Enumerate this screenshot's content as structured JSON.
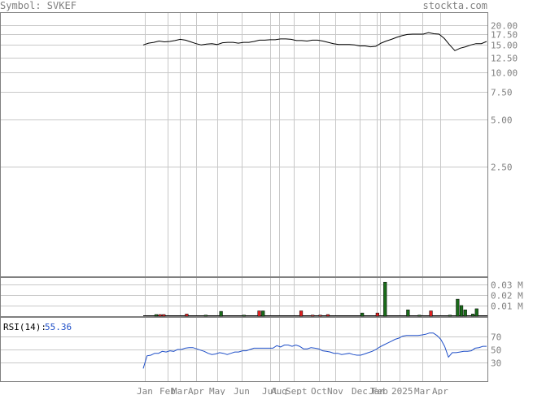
{
  "header": {
    "symbol_label": "Symbol: SVKEF",
    "site_label": "stockta.com"
  },
  "rsi": {
    "label": "RSI(14):",
    "value": "55.36",
    "ticks": [
      "70",
      "50",
      "30"
    ],
    "levels": [
      70,
      50,
      30
    ]
  },
  "colors": {
    "price_line": "#000000",
    "rsi_line": "#1f4fc8",
    "volume_up": "#1a6b1a",
    "volume_down": "#e02020",
    "grid": "#c8c8c8",
    "text": "#808080",
    "rsi_value": "#1f4fc8"
  },
  "chart_data": {
    "type": "line",
    "x_labels": [
      "Jan",
      "Feb",
      "Mar",
      "Apr",
      "May",
      "Jun",
      "Jul",
      "Aug",
      "Sept",
      "Oct",
      "Nov",
      "Dec",
      "Jan",
      "Feb",
      "2025",
      "Mar",
      "Apr"
    ],
    "price": {
      "ticks": [
        "20.00",
        "17.50",
        "15.00",
        "12.50",
        "10.00",
        "7.50",
        "5.00",
        "2.50"
      ],
      "tick_values": [
        20,
        17.5,
        15,
        12.5,
        10,
        7.5,
        5,
        2.5
      ],
      "scale": "log",
      "ylim": [
        0.5,
        24
      ],
      "close": [
        15.0,
        15.4,
        15.6,
        15.9,
        15.7,
        15.8,
        16.0,
        16.3,
        16.1,
        15.7,
        15.3,
        15.0,
        15.2,
        15.3,
        15.1,
        15.5,
        15.6,
        15.6,
        15.4,
        15.6,
        15.6,
        15.8,
        16.1,
        16.1,
        16.2,
        16.2,
        16.4,
        16.4,
        16.3,
        16.0,
        16.0,
        15.9,
        16.1,
        16.1,
        15.9,
        15.6,
        15.3,
        15.1,
        15.1,
        15.1,
        15.0,
        14.8,
        14.8,
        14.6,
        14.7,
        15.4,
        15.9,
        16.3,
        16.8,
        17.2,
        17.5,
        17.6,
        17.6,
        17.6,
        18.0,
        17.7,
        17.6,
        16.5,
        15.0,
        13.8,
        14.3,
        14.6,
        15.0,
        15.3,
        15.3,
        15.8
      ]
    },
    "volume": {
      "ticks": [
        "0.03 M",
        "0.02 M",
        "0.01 M"
      ],
      "tick_values": [
        0.03,
        0.02,
        0.01
      ],
      "unit": "M",
      "bars": [
        {
          "i": 3,
          "v": 0.0015,
          "c": "up"
        },
        {
          "i": 4,
          "v": 0.0015,
          "c": "down"
        },
        {
          "i": 5,
          "v": 0.0015,
          "c": "down"
        },
        {
          "i": 11,
          "v": 0.002,
          "c": "down"
        },
        {
          "i": 16,
          "v": 0.001,
          "c": "up"
        },
        {
          "i": 20,
          "v": 0.0045,
          "c": "up"
        },
        {
          "i": 26,
          "v": 0.001,
          "c": "up"
        },
        {
          "i": 30,
          "v": 0.005,
          "c": "down"
        },
        {
          "i": 31,
          "v": 0.005,
          "c": "up"
        },
        {
          "i": 41,
          "v": 0.005,
          "c": "down"
        },
        {
          "i": 44,
          "v": 0.001,
          "c": "down"
        },
        {
          "i": 46,
          "v": 0.001,
          "c": "down"
        },
        {
          "i": 48,
          "v": 0.0015,
          "c": "down"
        },
        {
          "i": 57,
          "v": 0.003,
          "c": "up"
        },
        {
          "i": 61,
          "v": 0.003,
          "c": "down"
        },
        {
          "i": 63,
          "v": 0.032,
          "c": "up"
        },
        {
          "i": 69,
          "v": 0.006,
          "c": "up"
        },
        {
          "i": 72,
          "v": 0.001,
          "c": "up"
        },
        {
          "i": 75,
          "v": 0.005,
          "c": "down"
        },
        {
          "i": 80,
          "v": 0.001,
          "c": "up"
        },
        {
          "i": 82,
          "v": 0.016,
          "c": "up"
        },
        {
          "i": 83,
          "v": 0.01,
          "c": "up"
        },
        {
          "i": 84,
          "v": 0.006,
          "c": "up"
        },
        {
          "i": 86,
          "v": 0.002,
          "c": "up"
        },
        {
          "i": 87,
          "v": 0.007,
          "c": "up"
        }
      ]
    },
    "rsi": [
      20,
      40,
      41,
      44,
      44,
      47,
      46,
      48,
      47,
      50,
      50,
      52,
      53,
      53,
      51,
      49,
      47,
      44,
      42,
      43,
      45,
      44,
      42,
      44,
      46,
      46,
      48,
      48,
      50,
      52,
      52,
      52,
      52,
      52,
      52,
      56,
      54,
      57,
      57,
      55,
      57,
      55,
      51,
      51,
      53,
      52,
      51,
      48,
      47,
      46,
      44,
      44,
      42,
      43,
      44,
      42,
      41,
      41,
      43,
      45,
      47,
      50,
      54,
      57,
      60,
      63,
      66,
      68,
      71,
      72,
      72,
      72,
      72,
      73,
      74,
      76,
      76,
      72,
      66,
      55,
      38,
      45,
      45,
      46,
      47,
      47,
      48,
      52,
      53,
      55,
      55
    ]
  }
}
